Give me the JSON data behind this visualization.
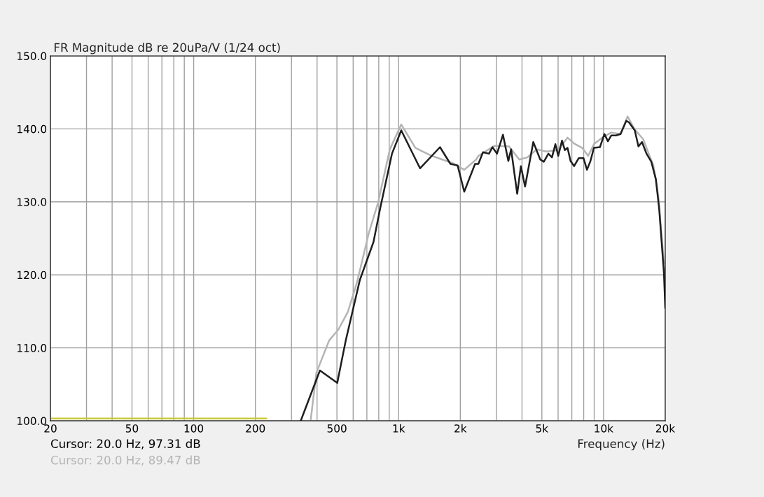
{
  "chart_data": {
    "type": "line",
    "title": "FR Magnitude dB re 20uPa/V (1/24 oct)",
    "xlabel": "Frequency (Hz)",
    "annotations": [
      "Cursor: 20.0 Hz, 97.31 dB",
      "Cursor: 20.0 Hz, 89.47 dB"
    ],
    "log": "x",
    "xlim": [
      20,
      20000
    ],
    "ylim": [
      100,
      150
    ],
    "xticks": [
      20,
      {
        "value": 30,
        "label": null
      },
      {
        "value": 40,
        "label": null
      },
      50,
      {
        "value": 60,
        "label": null
      },
      {
        "value": 70,
        "label": null
      },
      {
        "value": 80,
        "label": null
      },
      {
        "value": 90,
        "label": null
      },
      100,
      {
        "value": 300,
        "label": null
      },
      {
        "value": 400,
        "label": null
      },
      200,
      500,
      {
        "value": 600,
        "label": null
      },
      {
        "value": 700,
        "label": null
      },
      {
        "value": 800,
        "label": null
      },
      {
        "value": 900,
        "label": null
      },
      {
        "value": 1000,
        "label": "1k"
      },
      {
        "value": 2000,
        "label": "2k"
      },
      {
        "value": 3000,
        "label": null
      },
      {
        "value": 4000,
        "label": null
      },
      {
        "value": 5000,
        "label": "5k"
      },
      {
        "value": 6000,
        "label": null
      },
      {
        "value": 7000,
        "label": null
      },
      {
        "value": 8000,
        "label": null
      },
      {
        "value": 9000,
        "label": null
      },
      {
        "value": 10000,
        "label": "10k"
      },
      {
        "value": 20000,
        "label": "20k"
      }
    ],
    "yticks": [
      {
        "value": 100,
        "label": "100.0"
      },
      {
        "value": 110,
        "label": "110.0"
      },
      {
        "value": 120,
        "label": "120.0"
      },
      {
        "value": 130,
        "label": "130.0"
      },
      {
        "value": 140,
        "label": "140.0"
      },
      {
        "value": 150,
        "label": "150.0"
      }
    ],
    "grid": true,
    "marker": "none",
    "line_style": "solid",
    "series": [
      {
        "color": "#b4b4b4",
        "x": [
          372,
          397,
          458,
          508,
          565,
          627,
          715,
          794,
          906,
          1030,
          1208,
          1452,
          1840,
          2090,
          2390,
          2450,
          2940,
          3460,
          3880,
          4250,
          4720,
          5250,
          5980,
          6670,
          7180,
          7870,
          8410,
          8970,
          9840,
          10900,
          12100,
          13100,
          14200,
          15600,
          16600,
          17500,
          18500,
          19700
        ],
        "values": [
          100,
          106.6,
          111.0,
          112.5,
          114.9,
          119.0,
          125.7,
          129.9,
          137.2,
          140.6,
          137.4,
          136.3,
          135.3,
          134.4,
          135.8,
          136.3,
          137.7,
          137.6,
          135.8,
          136.1,
          137.2,
          136.9,
          137.1,
          138.8,
          138.0,
          137.4,
          136.3,
          137.9,
          138.8,
          139.5,
          139.3,
          141.7,
          139.9,
          138.6,
          136.6,
          135.0,
          130.8,
          121.6
        ]
      },
      {
        "color": "#c8c83c",
        "x": [
          20,
          226
        ],
        "values": [
          100.3,
          100.3
        ]
      },
      {
        "color": "#1e1e1e",
        "x": [
          333,
          413,
          502,
          552,
          647,
          754,
          814,
          928,
          1030,
          1272,
          1592,
          1790,
          1940,
          2090,
          2360,
          2450,
          2580,
          2760,
          2870,
          3020,
          3230,
          3430,
          3540,
          3790,
          3950,
          4140,
          4540,
          4910,
          5110,
          5380,
          5600,
          5820,
          6010,
          6270,
          6470,
          6670,
          6900,
          7180,
          7570,
          7980,
          8300,
          8630,
          8970,
          9600,
          10100,
          10500,
          10900,
          11500,
          12100,
          12900,
          13300,
          14200,
          14800,
          15400,
          16200,
          17100,
          18000,
          18700,
          19200,
          19700,
          20000
        ],
        "values": [
          100.0,
          106.9,
          105.2,
          111.0,
          119.3,
          124.5,
          129.2,
          136.6,
          139.8,
          134.6,
          137.5,
          135.2,
          135.0,
          131.4,
          135.2,
          135.2,
          136.8,
          136.6,
          137.5,
          136.6,
          139.2,
          135.6,
          137.2,
          131.1,
          134.9,
          132.1,
          138.2,
          135.8,
          135.5,
          136.6,
          136.1,
          137.9,
          136.3,
          138.4,
          137.1,
          137.4,
          135.6,
          134.9,
          136.0,
          136.0,
          134.4,
          135.6,
          137.4,
          137.5,
          139.3,
          138.3,
          139.1,
          139.1,
          139.3,
          141.1,
          140.9,
          139.8,
          137.6,
          138.2,
          136.6,
          135.5,
          133.1,
          128.9,
          124.5,
          120.3,
          115.5
        ]
      }
    ]
  }
}
